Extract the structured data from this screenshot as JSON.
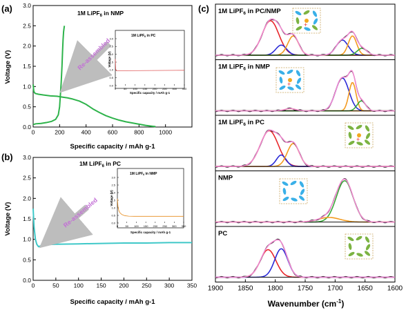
{
  "panel_labels": {
    "a": "(a)",
    "b": "(b)",
    "c": "(c)"
  },
  "colors": {
    "green": "#2db34a",
    "cyan": "#3ec8c8",
    "orange": "#f39a1e",
    "red": "#e8262a",
    "blue": "#2a2ad6",
    "pink": "#f08ad0",
    "black": "#111111",
    "green_spec": "#3aa83a",
    "purple_arrow": "#c36fd6",
    "light_blue_mol": "#3ab0e8",
    "green_mol": "#7cb342",
    "box_dash": "#c8a45a",
    "inset_red": "#e05a5a",
    "inset_orange": "#e68a1a"
  },
  "chart_data": [
    {
      "id": "a",
      "type": "line",
      "title": "1M LiPF6 in NMP",
      "title_parts": {
        "main": "1M LiPF",
        "sub": "6",
        "rest": " in NMP"
      },
      "xlabel": "Specific capacity / mAh g-1",
      "ylabel": "Voltage (V)",
      "xlim": [
        0,
        1200
      ],
      "ylim": [
        0,
        3.0
      ],
      "xticks": [
        0,
        200,
        400,
        600,
        800,
        1000
      ],
      "yticks": [
        0.0,
        0.5,
        1.0,
        1.5,
        2.0,
        2.5,
        3.0
      ],
      "annotation": "Re-assembled",
      "series": [
        {
          "role": "discharge",
          "color": "green",
          "x": [
            0,
            5,
            15,
            40,
            80,
            130,
            180,
            220,
            260,
            300,
            350,
            400,
            450,
            500,
            550,
            600,
            650,
            700,
            750,
            800,
            850,
            900,
            925
          ],
          "y": [
            1.05,
            0.88,
            0.83,
            0.81,
            0.79,
            0.77,
            0.76,
            0.74,
            0.72,
            0.69,
            0.64,
            0.56,
            0.45,
            0.36,
            0.28,
            0.22,
            0.17,
            0.13,
            0.1,
            0.07,
            0.04,
            0.02,
            0.01
          ]
        },
        {
          "role": "charge",
          "color": "green",
          "x": [
            0,
            20,
            60,
            100,
            140,
            170,
            190,
            200,
            205,
            212,
            218,
            222,
            226,
            230,
            236
          ],
          "y": [
            0.06,
            0.08,
            0.09,
            0.11,
            0.14,
            0.19,
            0.3,
            0.5,
            0.75,
            1.1,
            1.5,
            1.85,
            2.15,
            2.35,
            2.5
          ]
        }
      ],
      "inset": {
        "title": "1M LiPF6 in PC",
        "title_parts": {
          "main": "1M LiPF",
          "sub": "6",
          "rest": " in PC"
        },
        "xlabel": "Specific capacity / mAh g-1",
        "ylabel": "Voltage (V)",
        "xlim": [
          0,
          350
        ],
        "ylim": [
          0,
          3.0
        ],
        "xticks": [
          0,
          50,
          100,
          150,
          200,
          250,
          300,
          350
        ],
        "yticks": [
          0.0,
          0.5,
          1.0,
          1.5,
          2.0,
          2.5,
          3.0
        ],
        "series": [
          {
            "color": "inset_red",
            "x": [
              0,
              2,
              5,
              350
            ],
            "y": [
              1.7,
              1.05,
              0.95,
              0.98
            ]
          }
        ]
      }
    },
    {
      "id": "b",
      "type": "line",
      "title": "1M LiPF6 in PC",
      "title_parts": {
        "main": "1M LiPF",
        "sub": "6",
        "rest": " in PC"
      },
      "xlabel": "Specific capacity / mAh g-1",
      "ylabel": "Voltage (V)",
      "xlim": [
        0,
        350
      ],
      "ylim": [
        0,
        3.0
      ],
      "xticks": [
        0,
        50,
        100,
        150,
        200,
        250,
        300,
        350
      ],
      "yticks": [
        0.0,
        0.5,
        1.0,
        1.5,
        2.0,
        2.5,
        3.0
      ],
      "annotation": "Re-assembled",
      "series": [
        {
          "color": "cyan",
          "x": [
            0,
            2,
            5,
            8,
            12,
            16,
            22,
            30,
            50,
            100,
            150,
            200,
            250,
            300,
            350
          ],
          "y": [
            1.75,
            1.3,
            1.0,
            0.88,
            0.82,
            0.84,
            0.86,
            0.87,
            0.88,
            0.89,
            0.9,
            0.91,
            0.91,
            0.92,
            0.92
          ]
        }
      ],
      "inset": {
        "title": "1M LiPF6 in NMP",
        "title_parts": {
          "main": "1M LiPF",
          "sub": "6",
          "rest": " in NMP"
        },
        "xlabel": "Specific capacity / mAh g-1",
        "ylabel": "Voltage (V)",
        "xlim": [
          0,
          350
        ],
        "ylim": [
          0,
          3.0
        ],
        "xticks": [
          0,
          50,
          100,
          150,
          200,
          250,
          300,
          350
        ],
        "yticks": [
          0.0,
          0.5,
          1.0,
          1.5,
          2.0,
          2.5,
          3.0
        ],
        "series": [
          {
            "color": "inset_orange",
            "x": [
              0,
              3,
              8,
              15,
              25,
              40,
              60,
              90,
              130,
              200,
              350
            ],
            "y": [
              1.6,
              1.1,
              0.8,
              0.65,
              0.55,
              0.48,
              0.45,
              0.44,
              0.44,
              0.44,
              0.44
            ]
          }
        ]
      }
    },
    {
      "id": "c",
      "type": "line",
      "xlabel": "Wavenumber (cm-1)",
      "xlim": [
        1900,
        1600
      ],
      "x_reversed": true,
      "xticks": [
        1900,
        1850,
        1800,
        1750,
        1700,
        1650,
        1600
      ],
      "panels": [
        {
          "label": "1M LiPF6 in PC/NMP",
          "label_parts": {
            "main": "1M LiPF",
            "sub": "6",
            "rest": " in PC/NMP"
          },
          "molecules": "mixed",
          "peaks": [
            {
              "color": "red",
              "center": 1808,
              "height": 0.75,
              "width": 14
            },
            {
              "color": "blue",
              "center": 1790,
              "height": 0.22,
              "width": 9
            },
            {
              "color": "orange",
              "center": 1770,
              "height": 0.42,
              "width": 9
            },
            {
              "color": "blue",
              "center": 1688,
              "height": 0.33,
              "width": 10
            },
            {
              "color": "orange",
              "center": 1671,
              "height": 0.42,
              "width": 7
            },
            {
              "color": "green_spec",
              "center": 1655,
              "height": 0.15,
              "width": 8
            }
          ],
          "baseline": 0.03
        },
        {
          "label": "1M LiPF6 in NMP",
          "label_parts": {
            "main": "1M LiPF",
            "sub": "6",
            "rest": " in NMP"
          },
          "molecules": "nmp_li",
          "peaks": [
            {
              "color": "orange",
              "center": 1775,
              "height": 0.05,
              "width": 9
            },
            {
              "color": "blue",
              "center": 1688,
              "height": 0.72,
              "width": 11
            },
            {
              "color": "orange",
              "center": 1671,
              "height": 0.62,
              "width": 6
            },
            {
              "color": "green_spec",
              "center": 1656,
              "height": 0.22,
              "width": 7
            }
          ],
          "baseline": 0.02
        },
        {
          "label": "1M LiPF6 in PC",
          "label_parts": {
            "main": "1M LiPF",
            "sub": "6",
            "rest": " in PC"
          },
          "molecules": "pc_li",
          "peaks": [
            {
              "color": "red",
              "center": 1810,
              "height": 0.78,
              "width": 15
            },
            {
              "color": "blue",
              "center": 1790,
              "height": 0.25,
              "width": 8
            },
            {
              "color": "orange",
              "center": 1770,
              "height": 0.5,
              "width": 10
            }
          ],
          "baseline": 0.02
        },
        {
          "label": "NMP",
          "molecules": "nmp",
          "peaks": [
            {
              "color": "green_spec",
              "center": 1684,
              "height": 0.9,
              "width": 14
            },
            {
              "color": "orange",
              "center": 1710,
              "height": 0.1,
              "width": 18
            }
          ],
          "baseline": 0.02
        },
        {
          "label": "PC",
          "molecules": "pc",
          "peaks": [
            {
              "color": "red",
              "center": 1812,
              "height": 0.6,
              "width": 13
            },
            {
              "color": "blue",
              "center": 1790,
              "height": 0.62,
              "width": 11
            }
          ],
          "baseline": 0.05
        }
      ]
    }
  ]
}
